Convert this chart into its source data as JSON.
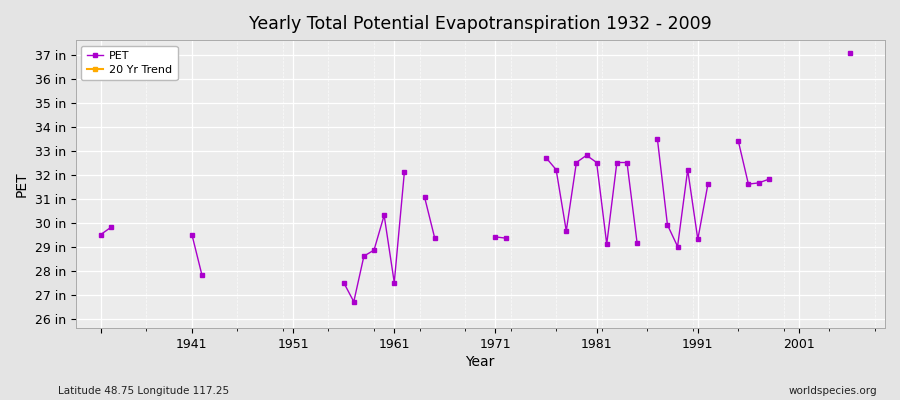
{
  "title": "Yearly Total Potential Evapotranspiration 1932 - 2009",
  "xlabel": "Year",
  "ylabel": "PET",
  "label_bottom_left": "Latitude 48.75 Longitude 117.25",
  "label_bottom_right": "worldspecies.org",
  "ylim": [
    25.6,
    37.6
  ],
  "ytick_values": [
    26,
    27,
    28,
    29,
    30,
    31,
    32,
    33,
    34,
    35,
    36,
    37
  ],
  "ytick_labels": [
    "26 in",
    "27 in",
    "28 in",
    "29 in",
    "30 in",
    "31 in",
    "32 in",
    "33 in",
    "34 in",
    "35 in",
    "36 in",
    "37 in"
  ],
  "xlim": [
    1929.5,
    2009.5
  ],
  "xtick_values": [
    1932,
    1941,
    1951,
    1961,
    1971,
    1981,
    1991,
    2001
  ],
  "xtick_labels": [
    "",
    "1941",
    "1951",
    "1961",
    "1971",
    "1981",
    "1991",
    "2001"
  ],
  "pet_data": {
    "1932": 29.5,
    "1933": 29.8,
    "1941": 29.5,
    "1942": 27.8,
    "1956": 27.5,
    "1957": 26.7,
    "1958": 28.6,
    "1959": 28.85,
    "1960": 30.3,
    "1961": 27.5,
    "1962": 32.1,
    "1964": 31.05,
    "1965": 29.35,
    "1971": 29.4,
    "1972": 29.35,
    "1976": 32.7,
    "1977": 32.2,
    "1978": 29.65,
    "1979": 32.5,
    "1980": 32.8,
    "1981": 32.5,
    "1982": 29.1,
    "1983": 32.5,
    "1984": 32.5,
    "1985": 29.15,
    "1987": 33.5,
    "1988": 29.9,
    "1989": 29.0,
    "1990": 32.2,
    "1991": 29.3,
    "1992": 31.6,
    "1995": 33.4,
    "1996": 31.6,
    "1997": 31.65,
    "1998": 31.8,
    "2006": 37.05
  },
  "pet_color": "#aa00cc",
  "trend_color": "#ffaa00",
  "bg_color": "#e4e4e4",
  "plot_bg_color": "#ececec",
  "grid_color": "#ffffff",
  "legend_labels": [
    "PET",
    "20 Yr Trend"
  ]
}
